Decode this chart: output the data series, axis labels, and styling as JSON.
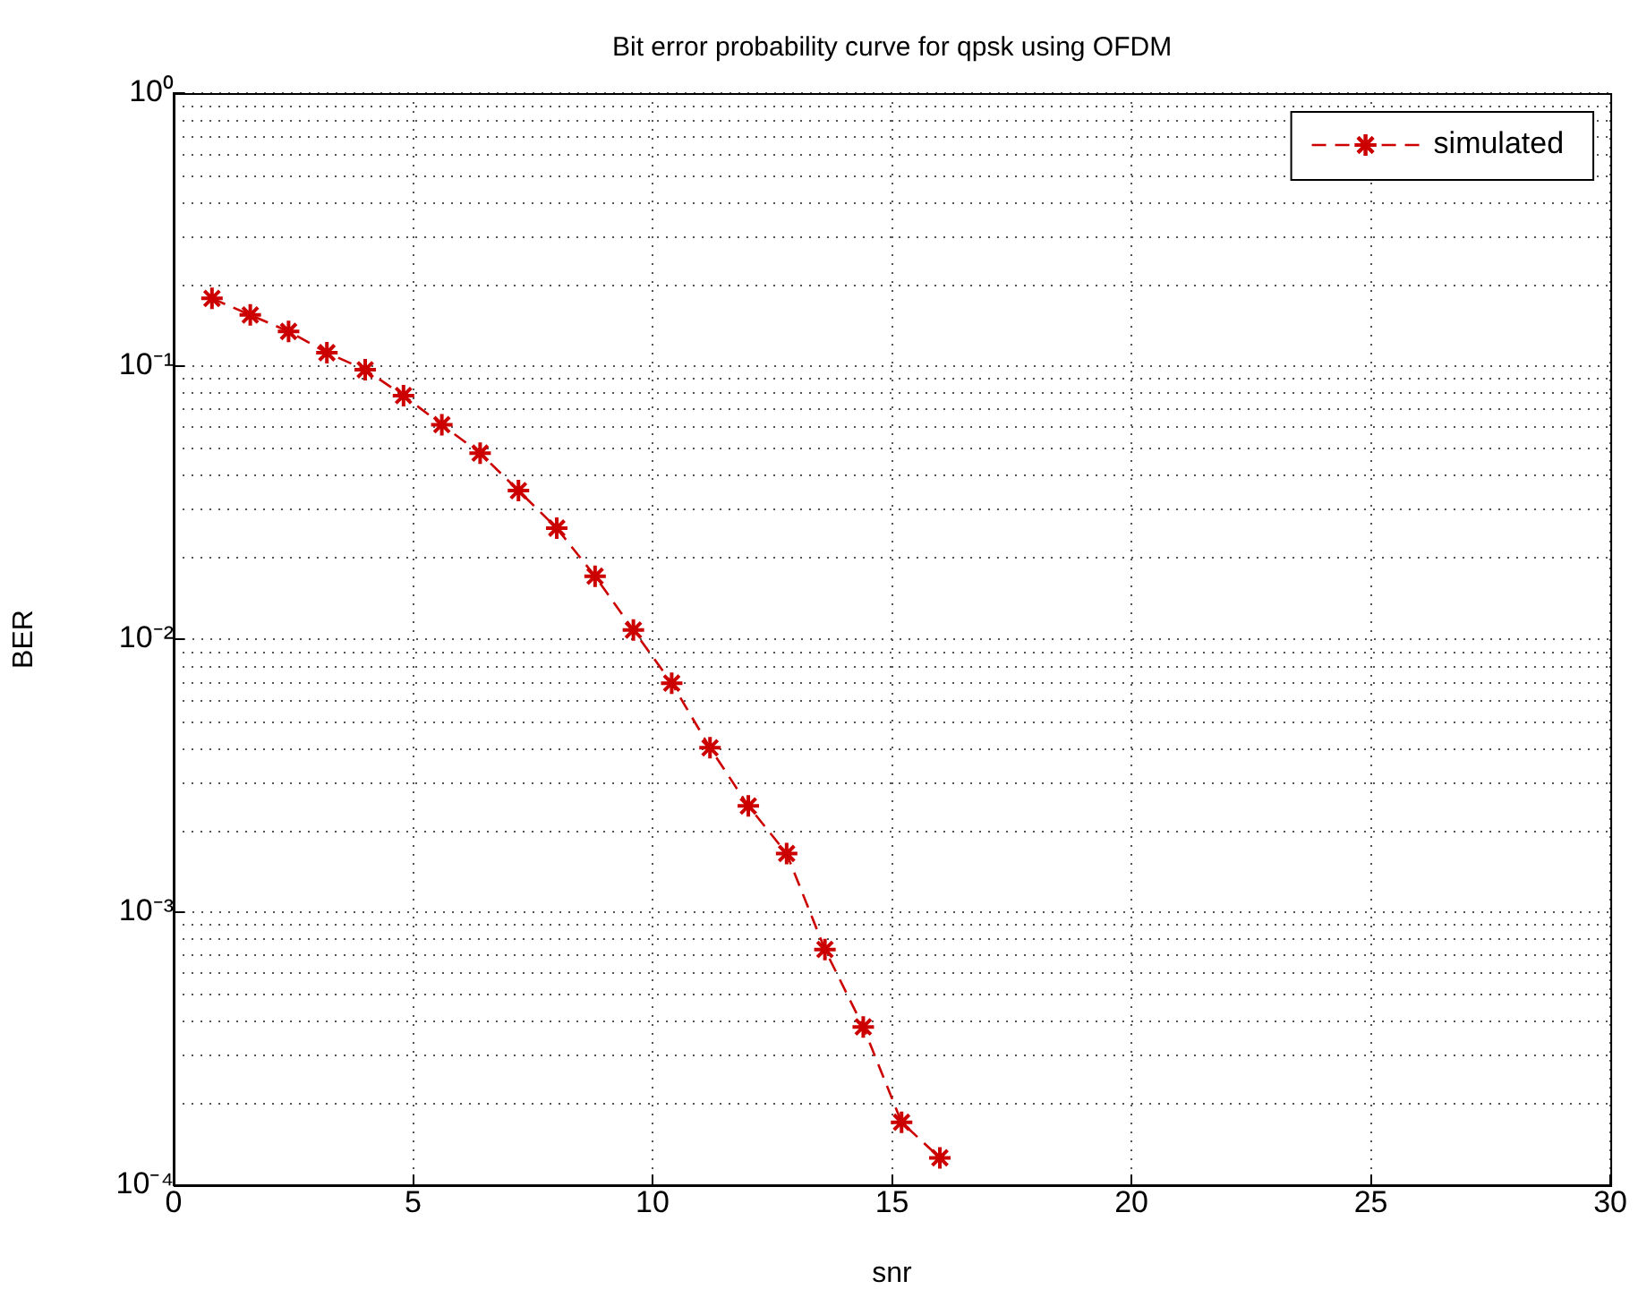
{
  "chart_data": {
    "type": "line",
    "title": "Bit error probability curve for qpsk using OFDM",
    "xlabel": "snr",
    "ylabel": "BER",
    "x": [
      0.8,
      1.6,
      2.4,
      3.2,
      4.0,
      4.8,
      5.6,
      6.4,
      7.2,
      8.0,
      8.8,
      9.6,
      10.4,
      11.2,
      12.0,
      12.8,
      13.6,
      14.4,
      15.2,
      16.0
    ],
    "series": [
      {
        "name": "simulated",
        "color": "#cc0000",
        "values": [
          0.177,
          0.154,
          0.134,
          0.112,
          0.097,
          0.078,
          0.061,
          0.048,
          0.035,
          0.0255,
          0.017,
          0.0108,
          0.0069,
          0.004,
          0.00245,
          0.00164,
          0.00073,
          0.00038,
          0.00017,
          0.000126
        ]
      }
    ],
    "xlim": [
      0,
      30
    ],
    "xticks": [
      0,
      5,
      10,
      15,
      20,
      25,
      30
    ],
    "ylim": [
      0.0001,
      1
    ],
    "yticks": [
      {
        "value": 1,
        "label": "10⁰"
      },
      {
        "value": 0.1,
        "label": "10⁻¹"
      },
      {
        "value": 0.01,
        "label": "10⁻²"
      },
      {
        "value": 0.001,
        "label": "10⁻³"
      },
      {
        "value": 0.0001,
        "label": "10⁻⁴"
      }
    ],
    "log": "y",
    "grid": true,
    "legend": "top right",
    "marker": "cross",
    "line_style": "dashed"
  }
}
